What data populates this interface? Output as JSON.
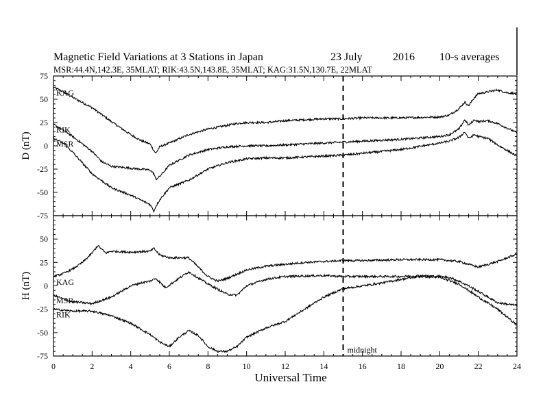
{
  "title": {
    "main": "Magnetic Field Variations at 3 Stations in Japan",
    "date": "23 July",
    "year": "2016",
    "averaging": "10-s averages",
    "stations_line": "MSR:44.4N,142.3E, 35MLAT;   RIK:43.5N,143.8E, 35MLAT;   KAG:31.5N,130.7E, 22MLAT"
  },
  "chart_data": {
    "type": "line",
    "xlabel": "Universal Time",
    "xlim": [
      0,
      24
    ],
    "xticks": [
      "0",
      "2",
      "4",
      "6",
      "8",
      "10",
      "12",
      "14",
      "16",
      "18",
      "20",
      "22",
      "24"
    ],
    "annotation": {
      "x": 15,
      "label": "midnight"
    },
    "panels": [
      {
        "ylabel": "D (nT)",
        "ylim": [
          -75,
          75
        ],
        "yticks": [
          "75",
          "50",
          "25",
          "0",
          "-25",
          "-50",
          "-75"
        ],
        "series": [
          {
            "name": "KAG",
            "x": [
              0,
              0.5,
              1,
              2,
              3,
              4,
              4.5,
              5,
              5.2,
              5.3,
              5.5,
              6,
              7,
              8,
              9,
              9.5,
              10,
              11,
              12,
              14,
              15,
              16,
              18,
              20,
              20.5,
              21,
              21.3,
              21.5,
              21.8,
              22,
              22.5,
              23,
              23.5,
              24
            ],
            "values": [
              63,
              58,
              52,
              41,
              26,
              12,
              6,
              2,
              -5,
              -8,
              -1,
              3,
              12,
              18,
              22,
              24,
              25,
              25,
              27,
              29,
              29,
              30,
              30,
              31,
              33,
              40,
              47,
              43,
              52,
              56,
              58,
              60,
              57,
              56
            ]
          },
          {
            "name": "RIK",
            "x": [
              0,
              0.5,
              1,
              2,
              2.5,
              3,
              4,
              5,
              5.2,
              5.3,
              5.5,
              6,
              7,
              8,
              9,
              10,
              11,
              12,
              13,
              14,
              15,
              16,
              18,
              20,
              20.5,
              21,
              21.3,
              21.5,
              21.8,
              22,
              22.5,
              23,
              24
            ],
            "values": [
              23,
              17,
              10,
              -6,
              -17,
              -22,
              -24,
              -26,
              -30,
              -36,
              -33,
              -21,
              -10,
              -4,
              -1,
              0,
              0,
              1,
              2,
              3,
              4,
              5,
              7,
              10,
              12,
              18,
              28,
              22,
              28,
              26,
              27,
              24,
              14
            ]
          },
          {
            "name": "MSR",
            "x": [
              0,
              0.5,
              1,
              2,
              3,
              4,
              4.5,
              5,
              5.2,
              5.3,
              5.5,
              6,
              7,
              8,
              9,
              10,
              11,
              12,
              13,
              14,
              15,
              16,
              18,
              20,
              20.5,
              21,
              21.3,
              21.5,
              21.8,
              22,
              22.5,
              23,
              24
            ],
            "values": [
              8,
              3,
              -7,
              -30,
              -45,
              -53,
              -58,
              -63,
              -70,
              -65,
              -58,
              -45,
              -37,
              -25,
              -18,
              -14,
              -13,
              -13,
              -12,
              -11,
              -10,
              -8,
              -4,
              3,
              5,
              9,
              15,
              8,
              12,
              10,
              8,
              1,
              -11
            ]
          }
        ],
        "label_positions": [
          "KAG",
          "RIK",
          "MSR"
        ]
      },
      {
        "ylabel": "H (nT)",
        "ylim": [
          -75,
          75
        ],
        "yticks": [
          "75",
          "50",
          "25",
          "0",
          "-25",
          "-50",
          "-75"
        ],
        "series": [
          {
            "name": "KAG",
            "x": [
              0,
              0.5,
              1,
              1.5,
              2,
              2.3,
              2.7,
              3,
              4,
              5,
              5.2,
              5.5,
              6,
              7,
              8,
              8.5,
              9,
              10,
              11,
              12,
              13,
              14,
              15,
              16,
              18,
              20,
              21,
              22,
              23,
              24
            ],
            "values": [
              10,
              13,
              18,
              25,
              35,
              43,
              35,
              37,
              36,
              37,
              40,
              33,
              30,
              30,
              10,
              5,
              8,
              17,
              21,
              23,
              25,
              26,
              27,
              27,
              28,
              28,
              26,
              20,
              26,
              34
            ]
          },
          {
            "name": "MSR",
            "x": [
              0,
              0.5,
              1,
              2,
              3,
              4,
              4.5,
              5,
              5.3,
              5.8,
              6.5,
              7,
              8,
              9,
              9.5,
              10,
              11,
              12,
              14,
              15,
              16,
              18,
              19,
              20,
              20.5,
              21,
              21.5,
              22,
              22.5,
              23,
              24
            ],
            "values": [
              -10,
              -14,
              -17,
              -19,
              -12,
              0,
              3,
              5,
              8,
              -2,
              8,
              15,
              2,
              -9,
              -10,
              0,
              7,
              10,
              11,
              10,
              10,
              10,
              11,
              10,
              9,
              5,
              0,
              -6,
              -12,
              -18,
              -21
            ]
          },
          {
            "name": "RIK",
            "x": [
              0,
              0.5,
              1,
              2,
              3,
              4,
              5,
              5.5,
              6,
              6.5,
              7,
              7.5,
              8,
              8.5,
              9,
              9.5,
              10,
              11,
              12,
              13,
              14,
              15,
              16,
              17,
              18,
              19,
              20,
              21,
              22,
              23,
              24
            ],
            "values": [
              -25,
              -26,
              -27,
              -27,
              -32,
              -40,
              -52,
              -60,
              -65,
              -55,
              -48,
              -53,
              -65,
              -70,
              -70,
              -65,
              -55,
              -45,
              -38,
              -25,
              -12,
              -3,
              0,
              3,
              7,
              10,
              9,
              2,
              -12,
              -25,
              -42
            ]
          }
        ],
        "label_positions": [
          "KAG",
          "MSR",
          "RIK"
        ]
      }
    ]
  }
}
